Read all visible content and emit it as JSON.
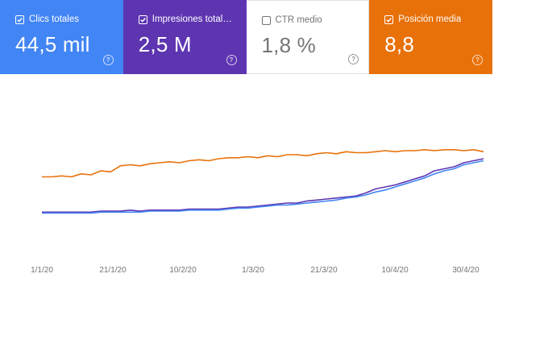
{
  "metrics": [
    {
      "label": "Clics totales",
      "value": "44,5 mil",
      "checked": true,
      "color": "#4285f4"
    },
    {
      "label": "Impresiones total…",
      "value": "2,5 M",
      "checked": true,
      "color": "#5e35b1"
    },
    {
      "label": "CTR medio",
      "value": "1,8 %",
      "checked": false,
      "color": "#ffffff"
    },
    {
      "label": "Posición media",
      "value": "8,8",
      "checked": true,
      "color": "#e8710a"
    }
  ],
  "help_glyph": "?",
  "chart_data": {
    "type": "line",
    "x_ticks": [
      "1/1/20",
      "21/1/20",
      "10/2/20",
      "1/3/20",
      "21/3/20",
      "10/4/20",
      "30/4/20"
    ],
    "x_range": [
      "1/1/20",
      "4/5/20"
    ],
    "grid": false,
    "series": [
      {
        "name": "Impresiones totales",
        "color": "#5e35b1",
        "values": [
          3,
          3,
          3,
          3,
          3,
          3,
          4,
          4,
          4,
          5,
          4,
          5,
          5,
          5,
          5,
          6,
          6,
          6,
          6,
          7,
          8,
          8,
          9,
          10,
          11,
          12,
          12,
          14,
          15,
          16,
          17,
          18,
          19,
          22,
          26,
          28,
          30,
          33,
          36,
          39,
          44,
          46,
          48,
          52,
          54,
          56
        ]
      },
      {
        "name": "Clics totales",
        "color": "#4285f4",
        "values": [
          2,
          2,
          2,
          2,
          2,
          2,
          3,
          3,
          3,
          3,
          3,
          4,
          4,
          4,
          4,
          5,
          5,
          5,
          5,
          6,
          7,
          7,
          8,
          9,
          10,
          10,
          11,
          12,
          13,
          14,
          15,
          17,
          18,
          20,
          23,
          25,
          28,
          31,
          34,
          37,
          41,
          44,
          46,
          50,
          52,
          54
        ]
      },
      {
        "name": "Posición media",
        "color": "#e8710a",
        "values": [
          38,
          38,
          39,
          38,
          41,
          40,
          44,
          43,
          49,
          50,
          49,
          51,
          52,
          53,
          52,
          54,
          55,
          54,
          56,
          57,
          57,
          58,
          57,
          59,
          58,
          60,
          60,
          59,
          61,
          62,
          61,
          63,
          62,
          62,
          63,
          64,
          63,
          64,
          64,
          65,
          64,
          65,
          65,
          64,
          65,
          63
        ]
      }
    ]
  }
}
